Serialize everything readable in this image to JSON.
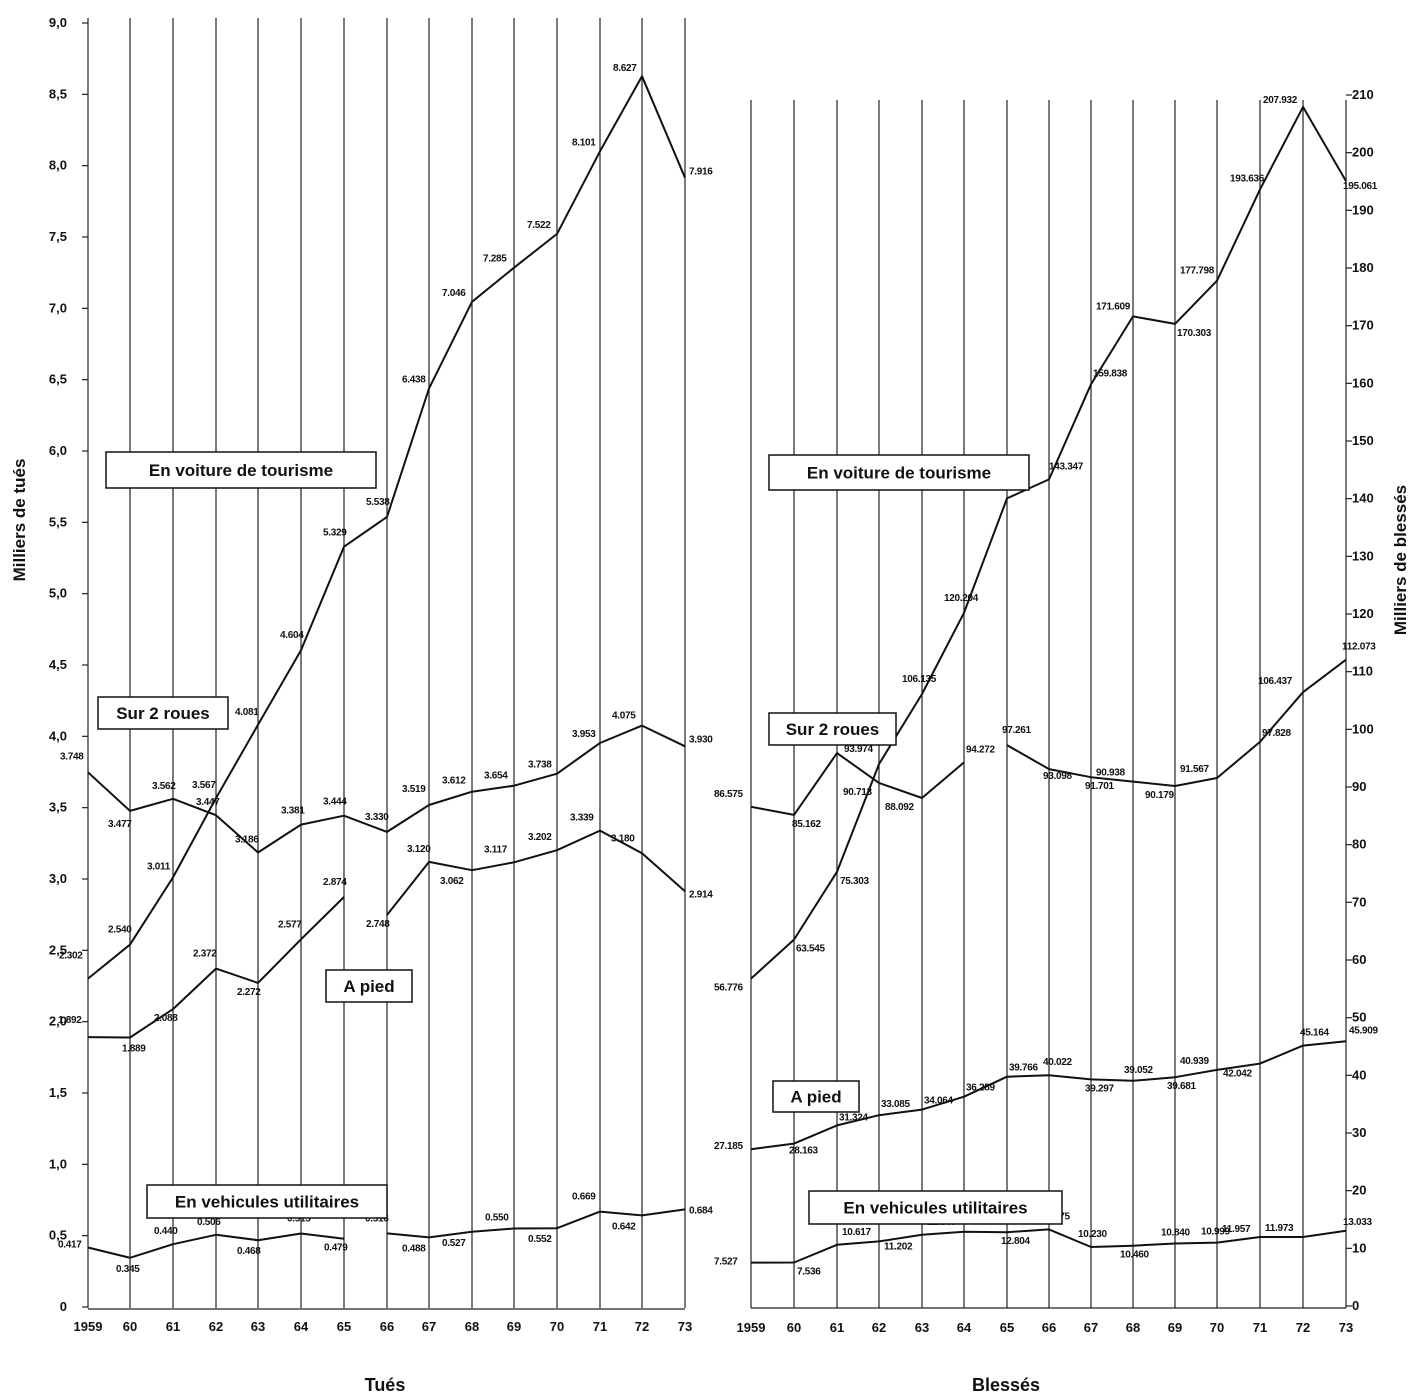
{
  "chart_data": [
    {
      "type": "line",
      "title": "Tués",
      "ylabel": "Milliers de tués",
      "ylim": [
        0,
        9
      ],
      "y_ticks": [
        "0",
        "0,5",
        "1,0",
        "1,5",
        "2,0",
        "2,5",
        "3,0",
        "3,5",
        "4,0",
        "4,5",
        "5,0",
        "5,5",
        "6,0",
        "6,5",
        "7,0",
        "7,5",
        "8,0",
        "8,5",
        "9,0"
      ],
      "x_labels": [
        "1959",
        "60",
        "61",
        "62",
        "63",
        "64",
        "65",
        "66",
        "67",
        "68",
        "69",
        "70",
        "71",
        "72",
        "73"
      ],
      "series": [
        {
          "name": "En voiture de tourisme",
          "values": [
            2.302,
            2.54,
            3.011,
            3.567,
            4.081,
            4.604,
            5.329,
            5.538,
            6.438,
            7.046,
            7.285,
            7.522,
            8.101,
            8.627,
            7.916
          ],
          "labels": [
            "2.302",
            "2.540",
            "3.011",
            "3.567",
            "4.081",
            "4.604",
            "5.329",
            "5.538",
            "6.438",
            "7.046",
            "7.285",
            "7.522",
            "8.101",
            "8.627",
            "7.916"
          ]
        },
        {
          "name": "Sur 2 roues",
          "values": [
            3.748,
            3.477,
            3.562,
            3.447,
            3.186,
            3.381,
            3.444,
            3.33,
            3.519,
            3.612,
            3.654,
            3.738,
            3.953,
            4.075,
            3.93
          ],
          "labels": [
            "3.748",
            "3.477",
            "3.562",
            "3.447",
            "3.186",
            "3.381",
            "3.444",
            "3.330",
            "3.519",
            "3.612",
            "3.654",
            "3.738",
            "3.953",
            "4.075",
            "3.930"
          ]
        },
        {
          "name": "A pied",
          "values": [
            1.892,
            1.889,
            2.088,
            2.372,
            2.272,
            2.577,
            2.874,
            2.748,
            3.12,
            3.062,
            3.117,
            3.202,
            3.339,
            3.18,
            2.914
          ],
          "labels": [
            "1.892",
            "1.889",
            "2.088",
            "2.372",
            "2.272",
            "2.577",
            "2.874",
            "2.748",
            "3.120",
            "3.062",
            "3.117",
            "3.202",
            "3.339",
            "3.180",
            "2.914"
          ]
        },
        {
          "name": "En vehicules utilitaires",
          "values": [
            0.417,
            0.345,
            0.44,
            0.506,
            0.468,
            0.515,
            0.479,
            0.516,
            0.488,
            0.527,
            0.55,
            0.552,
            0.669,
            0.642,
            0.684
          ],
          "labels": [
            "0.417",
            "0.345",
            "0.440",
            "0.506",
            "0.468",
            "0.515",
            "0.479",
            "0.516",
            "0.488",
            "0.527",
            "0.550",
            "0.552",
            "0.669",
            "0.642",
            "0.684"
          ]
        }
      ]
    },
    {
      "type": "line",
      "title": "Blessés",
      "ylabel": "Milliers de blessés",
      "ylim": [
        0,
        210
      ],
      "y_ticks": [
        "0",
        "10",
        "20",
        "30",
        "40",
        "50",
        "60",
        "70",
        "80",
        "90",
        "100",
        "110",
        "120",
        "130",
        "140",
        "150",
        "160",
        "170",
        "180",
        "190",
        "200",
        "210"
      ],
      "x_labels": [
        "1959",
        "60",
        "61",
        "62",
        "63",
        "64",
        "65",
        "66",
        "67",
        "68",
        "69",
        "70",
        "71",
        "72",
        "73"
      ],
      "series": [
        {
          "name": "En voiture de tourisme",
          "values": [
            56.776,
            63.545,
            75.303,
            93.974,
            106.135,
            120.204,
            140.049,
            143.347,
            159.838,
            171.609,
            170.303,
            177.798,
            193.636,
            207.932,
            195.061
          ],
          "labels": [
            "56.776",
            "63.545",
            "75.303",
            "93.974",
            "106.135",
            "120.204",
            "140.049",
            "143.347",
            "159.838",
            "171.609",
            "170.303",
            "177.798",
            "193.636",
            "207.932",
            "195.061"
          ]
        },
        {
          "name": "Sur 2 roues",
          "values": [
            86.575,
            85.162,
            95.875,
            90.713,
            88.092,
            94.272,
            97.261,
            93.098,
            91.701,
            90.938,
            90.179,
            91.567,
            97.828,
            106.437,
            112.073
          ],
          "labels": [
            "86.575",
            "85.162",
            "95.875",
            "90.713",
            "88.092",
            "94.272",
            "97.261",
            "93.098",
            "91.701",
            "90.938",
            "90.179",
            "91.567",
            "97.828",
            "106.437",
            "112.073"
          ]
        },
        {
          "name": "A pied",
          "values": [
            27.185,
            28.163,
            31.324,
            33.085,
            34.064,
            36.289,
            39.766,
            40.022,
            39.297,
            39.052,
            39.681,
            40.939,
            42.042,
            45.164,
            45.909
          ],
          "labels": [
            "27.185",
            "28.163",
            "31.324",
            "33.085",
            "34.064",
            "36.289",
            "39.766",
            "40.022",
            "39.297",
            "39.052",
            "39.681",
            "40.939",
            "42.042",
            "45.164",
            "45.909"
          ]
        },
        {
          "name": "En vehicules utilitaires",
          "values": [
            7.527,
            7.536,
            10.617,
            11.202,
            12.348,
            12.873,
            12.804,
            13.275,
            10.23,
            10.46,
            10.84,
            10.999,
            11.957,
            11.973,
            13.033
          ],
          "labels": [
            "7.527",
            "7.536",
            "10.617",
            "11.202",
            "12.348",
            "12.873",
            "12.804",
            "13.275",
            "10.230",
            "10.460",
            "10.840",
            "10.999",
            "11.957",
            "11.973",
            "13.033"
          ]
        }
      ]
    }
  ]
}
